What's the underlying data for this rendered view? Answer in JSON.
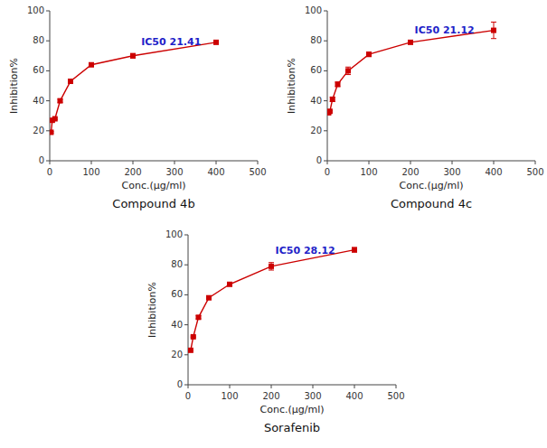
{
  "chart_data": [
    {
      "type": "line",
      "title": "Compound 4b",
      "x_label": "Conc.(μg/ml)",
      "y_label": "Inhibition%",
      "x": [
        3.125,
        6.25,
        12.5,
        25,
        50,
        100,
        200,
        400
      ],
      "series": [
        {
          "color": "#cc0000",
          "marker": "square",
          "values": [
            19,
            27,
            28,
            40,
            53,
            64,
            70,
            79
          ],
          "errors": [
            0.5,
            0.5,
            0.5,
            1.0,
            1.0,
            1.0,
            1.5,
            1.0
          ]
        }
      ],
      "annotations": [
        {
          "text": "IC50 21.41",
          "x": 220,
          "y": 79,
          "color": "#1f1fc8"
        }
      ],
      "xlim": [
        0,
        500
      ],
      "ylim": [
        0,
        100
      ],
      "xticks": [
        0,
        100,
        200,
        300,
        400,
        500
      ],
      "yticks": [
        0,
        20,
        40,
        60,
        80,
        100
      ],
      "grid": false
    },
    {
      "type": "line",
      "title": "Compound 4c",
      "x_label": "Conc.(μg/ml)",
      "y_label": "Inhibition%",
      "x": [
        3.125,
        6.25,
        12.5,
        25,
        50,
        100,
        200,
        400
      ],
      "series": [
        {
          "color": "#cc0000",
          "marker": "square",
          "values": [
            32,
            33,
            41,
            51,
            60,
            71,
            79,
            87
          ],
          "errors": [
            0.5,
            0.5,
            1.5,
            1.5,
            2.5,
            1.5,
            1.0,
            5.5
          ]
        }
      ],
      "annotations": [
        {
          "text": "IC50 21.12",
          "x": 210,
          "y": 87,
          "color": "#1f1fc8"
        }
      ],
      "xlim": [
        0,
        500
      ],
      "ylim": [
        0,
        100
      ],
      "xticks": [
        0,
        100,
        200,
        300,
        400,
        500
      ],
      "yticks": [
        0,
        20,
        40,
        60,
        80,
        100
      ],
      "grid": false
    },
    {
      "type": "line",
      "title": "Sorafenib",
      "x_label": "Conc.(μg/ml)",
      "y_label": "Inhibition%",
      "x": [
        6.25,
        12.5,
        25,
        50,
        100,
        200,
        400
      ],
      "series": [
        {
          "color": "#cc0000",
          "marker": "square",
          "values": [
            23,
            32,
            45,
            58,
            67,
            79,
            90
          ],
          "errors": [
            0.5,
            0.5,
            1.0,
            1.0,
            1.0,
            2.5,
            1.5
          ]
        }
      ],
      "annotations": [
        {
          "text": "IC50 28.12",
          "x": 210,
          "y": 89,
          "color": "#1f1fc8"
        }
      ],
      "xlim": [
        0,
        500
      ],
      "ylim": [
        0,
        100
      ],
      "xticks": [
        0,
        100,
        200,
        300,
        400,
        500
      ],
      "yticks": [
        0,
        20,
        40,
        60,
        80,
        100
      ],
      "grid": false
    }
  ]
}
